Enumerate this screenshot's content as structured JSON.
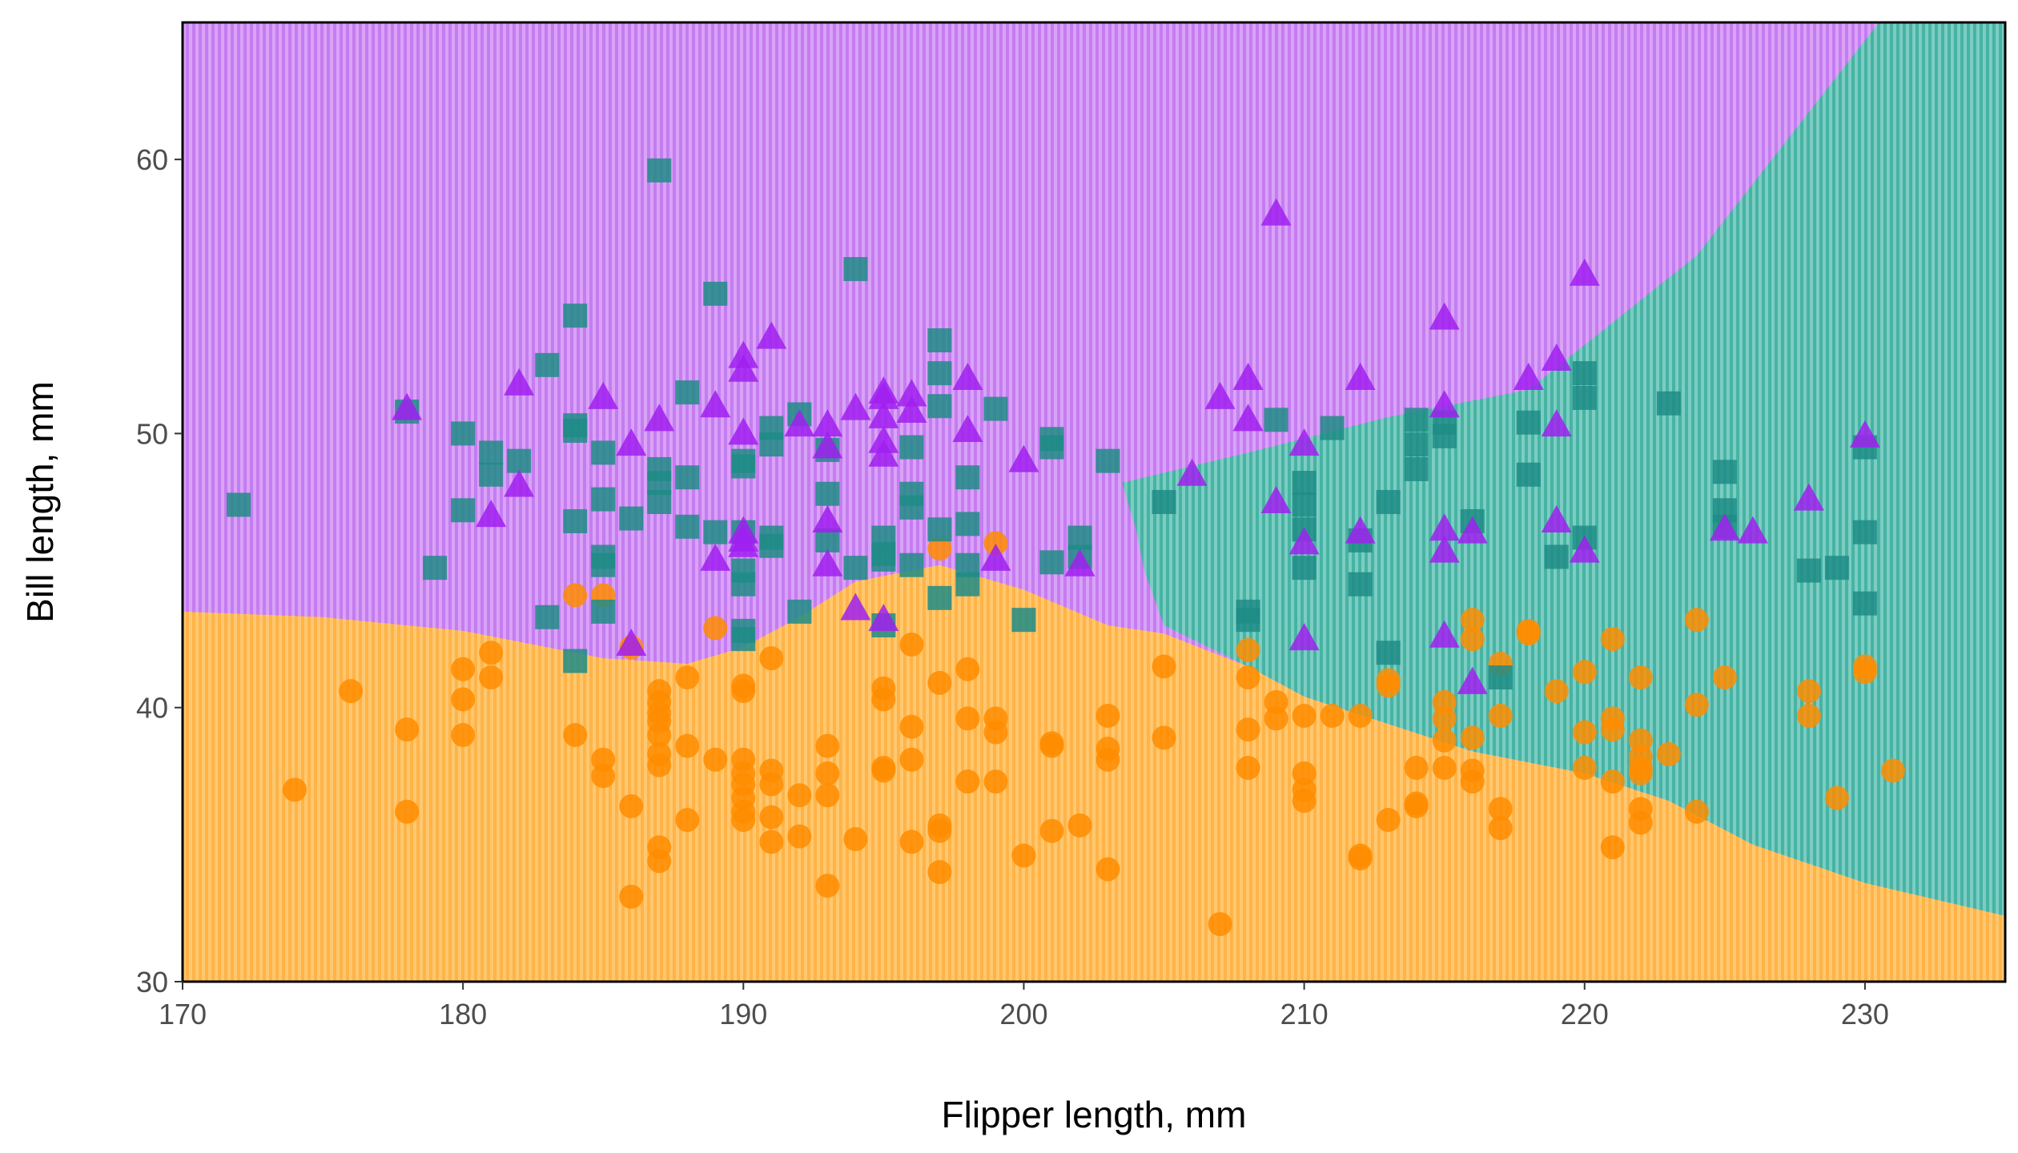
{
  "chart_data": {
    "type": "scatter",
    "title": "",
    "xlabel": "Flipper length, mm",
    "ylabel": "Bill length, mm",
    "xlim": [
      170,
      235
    ],
    "ylim": [
      30,
      65
    ],
    "x_ticks": [
      170,
      180,
      190,
      200,
      210,
      220,
      230
    ],
    "y_ticks": [
      30,
      40,
      50,
      60
    ],
    "grid": false,
    "legend": "none",
    "background": "classification regions (decision boundary): orange lower region, purple upper-left region, teal right region",
    "region_colors": {
      "orange": "#ffb94d",
      "purple": "#c77dff",
      "teal": "#3cb3a3"
    },
    "series": [
      {
        "marker": "circle",
        "color": "#ff8c00",
        "points": [
          [
            174,
            37
          ],
          [
            176,
            40.6
          ],
          [
            178,
            39.2
          ],
          [
            178,
            36.2
          ],
          [
            180,
            41.4
          ],
          [
            180,
            40.3
          ],
          [
            180,
            39
          ],
          [
            181,
            42
          ],
          [
            181,
            41.1
          ],
          [
            184,
            44.1
          ],
          [
            184,
            39
          ],
          [
            185,
            44.1
          ],
          [
            185,
            38.1
          ],
          [
            185,
            37.5
          ],
          [
            186,
            42.2
          ],
          [
            186,
            36.4
          ],
          [
            186,
            33.1
          ],
          [
            187,
            40.6
          ],
          [
            187,
            40.2
          ],
          [
            187,
            39.8
          ],
          [
            187,
            39.5
          ],
          [
            187,
            39
          ],
          [
            187,
            38.3
          ],
          [
            187,
            37.9
          ],
          [
            187,
            34.9
          ],
          [
            187,
            34.4
          ],
          [
            188,
            41.1
          ],
          [
            188,
            38.6
          ],
          [
            188,
            35.9
          ],
          [
            189,
            42.9
          ],
          [
            189,
            38.1
          ],
          [
            190,
            40.8
          ],
          [
            190,
            40.6
          ],
          [
            190,
            38.1
          ],
          [
            190,
            37.6
          ],
          [
            190,
            37.2
          ],
          [
            190,
            36.7
          ],
          [
            190,
            36.2
          ],
          [
            190,
            35.9
          ],
          [
            191,
            41.8
          ],
          [
            191,
            37.7
          ],
          [
            191,
            37.2
          ],
          [
            191,
            36
          ],
          [
            191,
            35.1
          ],
          [
            192,
            36.8
          ],
          [
            192,
            35.3
          ],
          [
            193,
            38.6
          ],
          [
            193,
            37.6
          ],
          [
            193,
            36.8
          ],
          [
            193,
            33.5
          ],
          [
            194,
            35.2
          ],
          [
            195,
            40.7
          ],
          [
            195,
            40.3
          ],
          [
            195,
            37.8
          ],
          [
            195,
            37.7
          ],
          [
            196,
            42.3
          ],
          [
            196,
            39.3
          ],
          [
            196,
            38.1
          ],
          [
            196,
            35.1
          ],
          [
            197,
            45.8
          ],
          [
            197,
            40.9
          ],
          [
            197,
            35.7
          ],
          [
            197,
            35.5
          ],
          [
            197,
            34
          ],
          [
            198,
            41.4
          ],
          [
            198,
            39.6
          ],
          [
            198,
            37.3
          ],
          [
            199,
            46
          ],
          [
            199,
            39.6
          ],
          [
            199,
            39.1
          ],
          [
            199,
            37.3
          ],
          [
            200,
            34.6
          ],
          [
            201,
            38.7
          ],
          [
            201,
            38.6
          ],
          [
            201,
            35.5
          ],
          [
            202,
            35.7
          ],
          [
            203,
            39.7
          ],
          [
            203,
            38.5
          ],
          [
            203,
            38.1
          ],
          [
            203,
            34.1
          ],
          [
            205,
            41.5
          ],
          [
            205,
            38.9
          ],
          [
            207,
            32.1
          ],
          [
            208,
            42.1
          ],
          [
            208,
            41.1
          ],
          [
            208,
            39.2
          ],
          [
            208,
            37.8
          ],
          [
            209,
            40.2
          ],
          [
            209,
            39.6
          ],
          [
            210,
            39.7
          ],
          [
            210,
            37.6
          ],
          [
            210,
            37
          ],
          [
            210,
            36.6
          ],
          [
            211,
            39.7
          ],
          [
            212,
            39.7
          ],
          [
            212,
            34.6
          ],
          [
            212,
            34.5
          ],
          [
            213,
            41
          ],
          [
            213,
            40.8
          ],
          [
            213,
            35.9
          ],
          [
            214,
            37.8
          ],
          [
            214,
            36.5
          ],
          [
            214,
            36.4
          ],
          [
            215,
            40.2
          ],
          [
            215,
            39.6
          ],
          [
            215,
            38.8
          ],
          [
            215,
            37.8
          ],
          [
            216,
            43.2
          ],
          [
            216,
            42.5
          ],
          [
            216,
            38.9
          ],
          [
            216,
            37.7
          ],
          [
            216,
            37.3
          ],
          [
            217,
            41.6
          ],
          [
            217,
            39.7
          ],
          [
            217,
            36.3
          ],
          [
            217,
            35.6
          ],
          [
            218,
            42.8
          ],
          [
            218,
            42.7
          ],
          [
            219,
            40.6
          ],
          [
            220,
            41.3
          ],
          [
            220,
            39.1
          ],
          [
            220,
            37.8
          ],
          [
            221,
            42.5
          ],
          [
            221,
            39.6
          ],
          [
            221,
            39.2
          ],
          [
            221,
            37.3
          ],
          [
            221,
            34.9
          ],
          [
            222,
            41.1
          ],
          [
            222,
            38.8
          ],
          [
            222,
            38.2
          ],
          [
            222,
            37.8
          ],
          [
            222,
            37.6
          ],
          [
            222,
            36.3
          ],
          [
            222,
            35.8
          ],
          [
            223,
            38.3
          ],
          [
            224,
            43.2
          ],
          [
            224,
            40.1
          ],
          [
            224,
            36.2
          ],
          [
            225,
            41.1
          ],
          [
            228,
            40.6
          ],
          [
            228,
            39.7
          ],
          [
            229,
            36.7
          ],
          [
            230,
            41.5
          ],
          [
            230,
            41.3
          ],
          [
            231,
            37.7
          ]
        ]
      },
      {
        "marker": "square",
        "color": "#1f8c86",
        "points": [
          [
            172,
            47.4
          ],
          [
            178,
            50.8
          ],
          [
            179,
            45.1
          ],
          [
            180,
            50
          ],
          [
            180,
            47.2
          ],
          [
            181,
            49.3
          ],
          [
            181,
            48.5
          ],
          [
            182,
            49
          ],
          [
            183,
            52.5
          ],
          [
            183,
            43.3
          ],
          [
            184,
            54.3
          ],
          [
            184,
            50.3
          ],
          [
            184,
            50.1
          ],
          [
            184,
            46.8
          ],
          [
            184,
            41.7
          ],
          [
            185,
            49.3
          ],
          [
            185,
            47.6
          ],
          [
            185,
            45.5
          ],
          [
            185,
            45.2
          ],
          [
            185,
            43.5
          ],
          [
            186,
            46.9
          ],
          [
            187,
            48.7
          ],
          [
            187,
            48.2
          ],
          [
            187,
            47.5
          ],
          [
            188,
            51.5
          ],
          [
            188,
            48.4
          ],
          [
            188,
            46.6
          ],
          [
            189,
            55.1
          ],
          [
            189,
            46.4
          ],
          [
            190,
            49
          ],
          [
            190,
            48.8
          ],
          [
            190,
            46.4
          ],
          [
            190,
            45
          ],
          [
            190,
            44.5
          ],
          [
            190,
            42.8
          ],
          [
            190,
            42.5
          ],
          [
            191,
            50.2
          ],
          [
            191,
            49.6
          ],
          [
            191,
            46.2
          ],
          [
            191,
            45.9
          ],
          [
            192,
            50.7
          ],
          [
            192,
            43.5
          ],
          [
            193,
            49.4
          ],
          [
            193,
            47.8
          ],
          [
            193,
            46.1
          ],
          [
            194,
            56
          ],
          [
            194,
            45.1
          ],
          [
            195,
            46.2
          ],
          [
            195,
            45.6
          ],
          [
            195,
            45.4
          ],
          [
            195,
            43
          ],
          [
            196,
            49.5
          ],
          [
            196,
            47.8
          ],
          [
            196,
            47.3
          ],
          [
            196,
            45.2
          ],
          [
            197,
            53.4
          ],
          [
            197,
            52.2
          ],
          [
            197,
            51
          ],
          [
            197,
            46.5
          ],
          [
            197,
            44
          ],
          [
            198,
            48.4
          ],
          [
            198,
            46.7
          ],
          [
            198,
            45.2
          ],
          [
            198,
            44.5
          ],
          [
            199,
            50.9
          ],
          [
            200,
            43.2
          ],
          [
            201,
            49.8
          ],
          [
            201,
            49.5
          ],
          [
            201,
            45.3
          ],
          [
            202,
            46.2
          ],
          [
            202,
            45.5
          ],
          [
            203,
            49
          ],
          [
            205,
            47.5
          ],
          [
            208,
            43.5
          ],
          [
            208,
            43.2
          ],
          [
            209,
            50.5
          ],
          [
            210,
            48.2
          ],
          [
            210,
            47.4
          ],
          [
            210,
            46.5
          ],
          [
            210,
            45.1
          ],
          [
            211,
            50.2
          ],
          [
            212,
            46.1
          ],
          [
            212,
            44.5
          ],
          [
            213,
            47.5
          ],
          [
            213,
            42
          ],
          [
            214,
            50.5
          ],
          [
            214,
            49.6
          ],
          [
            214,
            48.7
          ],
          [
            215,
            50.4
          ],
          [
            215,
            49.9
          ],
          [
            216,
            46.8
          ],
          [
            217,
            41.1
          ],
          [
            218,
            50.4
          ],
          [
            218,
            48.5
          ],
          [
            219,
            45.5
          ],
          [
            220,
            52.2
          ],
          [
            220,
            51.3
          ],
          [
            220,
            46.2
          ],
          [
            223,
            51.1
          ],
          [
            225,
            48.6
          ],
          [
            225,
            47.2
          ],
          [
            225,
            46.6
          ],
          [
            228,
            45
          ],
          [
            229,
            45.1
          ],
          [
            230,
            49.5
          ],
          [
            230,
            46.4
          ],
          [
            230,
            43.8
          ],
          [
            187,
            59.6
          ]
        ]
      },
      {
        "marker": "triangle",
        "color": "#a020f0",
        "points": [
          [
            178,
            50.9
          ],
          [
            181,
            47
          ],
          [
            182,
            51.8
          ],
          [
            182,
            48.1
          ],
          [
            185,
            51.3
          ],
          [
            186,
            49.6
          ],
          [
            186,
            42.3
          ],
          [
            187,
            50.5
          ],
          [
            189,
            51
          ],
          [
            189,
            45.4
          ],
          [
            190,
            52.8
          ],
          [
            190,
            52.3
          ],
          [
            190,
            50
          ],
          [
            190,
            46.4
          ],
          [
            190,
            46.1
          ],
          [
            190,
            45.9
          ],
          [
            191,
            53.5
          ],
          [
            192,
            50.3
          ],
          [
            193,
            50.3
          ],
          [
            193,
            49.5
          ],
          [
            193,
            46.8
          ],
          [
            193,
            45.2
          ],
          [
            194,
            50.9
          ],
          [
            194,
            43.6
          ],
          [
            195,
            51.5
          ],
          [
            195,
            51.3
          ],
          [
            195,
            50.6
          ],
          [
            195,
            49.7
          ],
          [
            195,
            49.2
          ],
          [
            195,
            43.2
          ],
          [
            196,
            51.4
          ],
          [
            196,
            50.8
          ],
          [
            198,
            52
          ],
          [
            198,
            50.1
          ],
          [
            199,
            45.4
          ],
          [
            200,
            49
          ],
          [
            202,
            45.2
          ],
          [
            206,
            48.5
          ],
          [
            207,
            51.3
          ],
          [
            208,
            52
          ],
          [
            208,
            50.5
          ],
          [
            209,
            58
          ],
          [
            209,
            47.5
          ],
          [
            210,
            49.6
          ],
          [
            210,
            46
          ],
          [
            210,
            42.5
          ],
          [
            212,
            52
          ],
          [
            212,
            46.4
          ],
          [
            215,
            54.2
          ],
          [
            215,
            51
          ],
          [
            215,
            46.5
          ],
          [
            215,
            45.7
          ],
          [
            215,
            42.6
          ],
          [
            216,
            46.4
          ],
          [
            216,
            40.9
          ],
          [
            218,
            52
          ],
          [
            219,
            52.7
          ],
          [
            219,
            50.3
          ],
          [
            219,
            46.8
          ],
          [
            220,
            55.8
          ],
          [
            220,
            45.7
          ],
          [
            225,
            46.5
          ],
          [
            226,
            46.4
          ],
          [
            228,
            47.6
          ],
          [
            230,
            49.9
          ]
        ]
      }
    ]
  }
}
